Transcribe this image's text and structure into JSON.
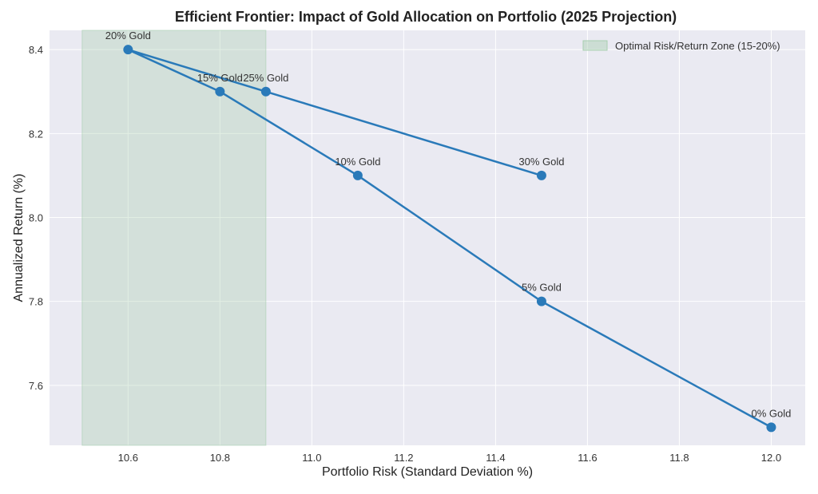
{
  "chart_data": {
    "type": "line",
    "title": "Efficient Frontier: Impact of Gold Allocation on Portfolio (2025 Projection)",
    "xlabel": "Portfolio Risk (Standard Deviation %)",
    "ylabel": "Annualized Return (%)",
    "xlim": [
      10.429,
      12.074
    ],
    "ylim": [
      7.457,
      8.446
    ],
    "xticks": [
      10.6,
      10.8,
      11.0,
      11.2,
      11.4,
      11.6,
      11.8,
      12.0
    ],
    "xtick_labels": [
      "10.6",
      "10.8",
      "11.0",
      "11.2",
      "11.4",
      "11.6",
      "11.8",
      "12.0"
    ],
    "yticks": [
      7.6,
      7.8,
      8.0,
      8.2,
      8.4
    ],
    "ytick_labels": [
      "7.6",
      "7.8",
      "8.0",
      "8.2",
      "8.4"
    ],
    "grid": true,
    "legend_placement": "top-right",
    "colors": {
      "line": "#2a7ab9",
      "zone": "#a8ceb0",
      "background": "#eaeaf2",
      "grid": "#ffffff"
    },
    "zone": {
      "label": "Optimal Risk/Return Zone (15-20%)",
      "x_range": [
        10.5,
        10.9
      ]
    },
    "points": [
      {
        "label": "0% Gold",
        "x": 12.0,
        "y": 7.5
      },
      {
        "label": "5% Gold",
        "x": 11.5,
        "y": 7.8
      },
      {
        "label": "10% Gold",
        "x": 11.1,
        "y": 8.1
      },
      {
        "label": "15% Gold",
        "x": 10.8,
        "y": 8.3
      },
      {
        "label": "20% Gold",
        "x": 10.6,
        "y": 8.4
      },
      {
        "label": "25% Gold",
        "x": 10.9,
        "y": 8.3
      },
      {
        "label": "30% Gold",
        "x": 11.5,
        "y": 8.1
      }
    ]
  }
}
